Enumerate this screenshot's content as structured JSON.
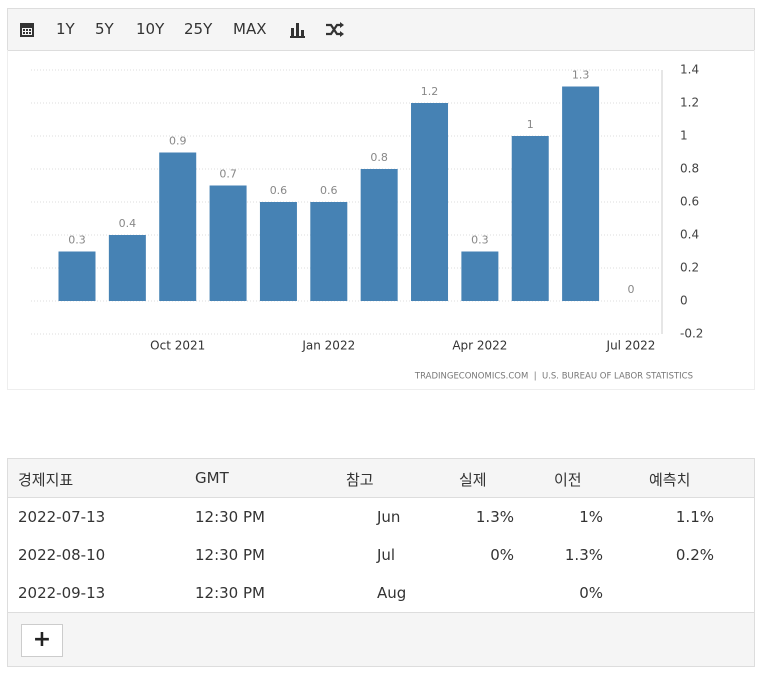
{
  "toolbar": {
    "ranges": [
      "1Y",
      "5Y",
      "10Y",
      "25Y",
      "MAX"
    ]
  },
  "chart_data": {
    "type": "bar",
    "categories": [
      null,
      null,
      "Oct 2021",
      null,
      null,
      "Jan 2022",
      null,
      null,
      "Apr 2022",
      null,
      null,
      "Jul 2022"
    ],
    "values": [
      0.3,
      0.4,
      0.9,
      0.7,
      0.6,
      0.6,
      0.8,
      1.2,
      0.3,
      1,
      1.3,
      0
    ],
    "color": "#4682b4",
    "ylim": [
      -0.2,
      1.4
    ],
    "yticks": [
      -0.2,
      0,
      0.2,
      0.4,
      0.6,
      0.8,
      1,
      1.2,
      1.4
    ],
    "grid": true,
    "source": "TRADINGECONOMICS.COM  |  U.S. BUREAU OF LABOR STATISTICS"
  },
  "table": {
    "headers": [
      "경제지표",
      "GMT",
      "참고",
      "실제",
      "이전",
      "예측치"
    ],
    "rows": [
      [
        "2022-07-13",
        "12:30 PM",
        "Jun",
        "1.3%",
        "1%",
        "1.1%"
      ],
      [
        "2022-08-10",
        "12:30 PM",
        "Jul",
        "0%",
        "1.3%",
        "0.2%"
      ],
      [
        "2022-09-13",
        "12:30 PM",
        "Aug",
        null,
        "0%",
        null
      ]
    ]
  },
  "more_button": "+"
}
